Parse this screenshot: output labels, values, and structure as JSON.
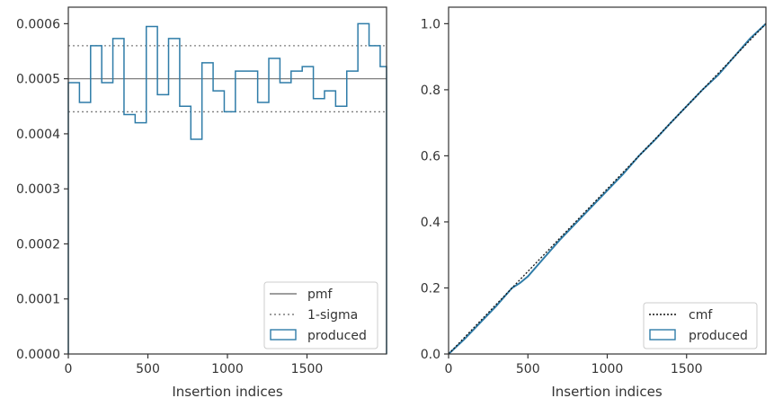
{
  "chart_data": [
    {
      "type": "step",
      "xlabel": "Insertion indices",
      "ylabel": "",
      "xlim": [
        0,
        2000
      ],
      "ylim": [
        0,
        0.00063
      ],
      "x_ticks": [
        0,
        500,
        1000,
        1500
      ],
      "x_tick_labels": [
        "0",
        "500",
        "1000",
        "1500"
      ],
      "y_ticks": [
        0,
        0.0001,
        0.0002,
        0.0003,
        0.0004,
        0.0005,
        0.0006
      ],
      "y_tick_labels": [
        "0.0000",
        "0.0001",
        "0.0002",
        "0.0003",
        "0.0004",
        "0.0005",
        "0.0006"
      ],
      "grid": false,
      "legend_position": "lower-right",
      "legend": [
        "pmf",
        "1-sigma",
        "produced"
      ],
      "reference_lines": {
        "pmf": 0.0005,
        "sigma_upper": 0.00056,
        "sigma_lower": 0.00044
      },
      "bin_edges": [
        0,
        70,
        140,
        210,
        280,
        350,
        420,
        490,
        560,
        630,
        700,
        770,
        840,
        910,
        980,
        1050,
        1120,
        1190,
        1260,
        1330,
        1400,
        1470,
        1540,
        1610,
        1680,
        1750,
        1820,
        1890,
        1960,
        2000
      ],
      "series": [
        {
          "name": "produced",
          "values": [
            0.000493,
            0.000457,
            0.00056,
            0.000493,
            0.000573,
            0.000435,
            0.00042,
            0.000595,
            0.000471,
            0.000573,
            0.00045,
            0.00039,
            0.000529,
            0.000478,
            0.00044,
            0.000514,
            0.000514,
            0.000457,
            0.000537,
            0.000493,
            0.000514,
            0.000522,
            0.000464,
            0.000478,
            0.00045,
            0.000514,
            0.0006,
            0.00056,
            0.000522
          ]
        }
      ],
      "colors": {
        "produced": "#2f7ca8",
        "pmf": "#7f7f7f",
        "sigma": "#7f7f7f"
      }
    },
    {
      "type": "line",
      "xlabel": "Insertion indices",
      "ylabel": "",
      "xlim": [
        0,
        2000
      ],
      "ylim": [
        0,
        1.05
      ],
      "x_ticks": [
        0,
        500,
        1000,
        1500
      ],
      "x_tick_labels": [
        "0",
        "500",
        "1000",
        "1500"
      ],
      "y_ticks": [
        0,
        0.2,
        0.4,
        0.6,
        0.8,
        1.0
      ],
      "y_tick_labels": [
        "0.0",
        "0.2",
        "0.4",
        "0.6",
        "0.8",
        "1.0"
      ],
      "grid": false,
      "legend_position": "lower-right",
      "legend": [
        "cmf",
        "produced"
      ],
      "series": [
        {
          "name": "cmf",
          "x": [
            0,
            2000
          ],
          "y": [
            0,
            1.0
          ]
        },
        {
          "name": "produced",
          "x": [
            0,
            100,
            200,
            300,
            400,
            450,
            500,
            600,
            700,
            800,
            900,
            1000,
            1100,
            1200,
            1300,
            1400,
            1500,
            1600,
            1700,
            1800,
            1900,
            2000
          ],
          "y": [
            0,
            0.045,
            0.095,
            0.145,
            0.2,
            0.215,
            0.235,
            0.29,
            0.345,
            0.395,
            0.445,
            0.495,
            0.545,
            0.6,
            0.648,
            0.7,
            0.75,
            0.8,
            0.845,
            0.9,
            0.955,
            1.0
          ]
        }
      ],
      "colors": {
        "produced": "#2f7ca8",
        "cmf": "#111111"
      }
    }
  ]
}
